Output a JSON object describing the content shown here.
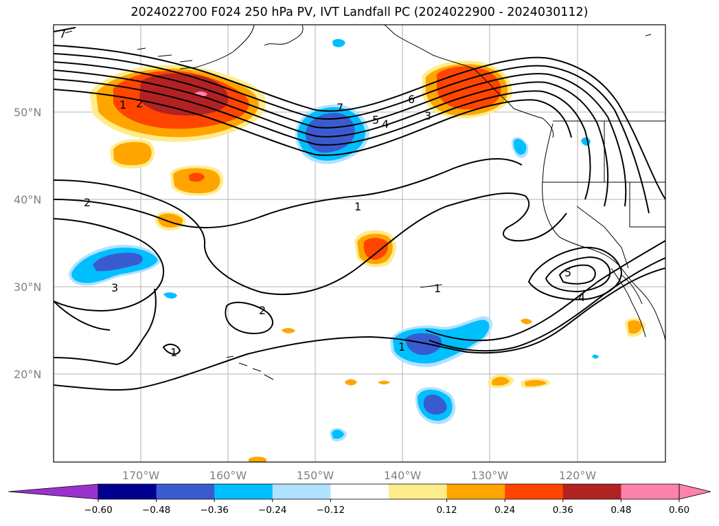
{
  "title": "2024022700 F024 250 hPa PV, IVT Landfall PC (2024022900 - 2024030112)",
  "colorbar": {
    "under_color": "#9932CC",
    "over_color": "#FF82AB",
    "bins": [
      {
        "color": "#000090"
      },
      {
        "color": "#3A5BD0"
      },
      {
        "color": "#00BFFF"
      },
      {
        "color": "#B0E2FF"
      },
      {
        "color": "#FFFFFF"
      },
      {
        "color": "#FFEC8B"
      },
      {
        "color": "#FFA500"
      },
      {
        "color": "#FF4500"
      },
      {
        "color": "#B22222"
      },
      {
        "color": "#FF82AB"
      }
    ],
    "tick_labels": [
      "−0.60",
      "−0.48",
      "−0.36",
      "−0.24",
      "−0.12",
      "0.12",
      "0.24",
      "0.36",
      "0.48",
      "0.60"
    ]
  },
  "axes": {
    "lon_labels": [
      "170°W",
      "160°W",
      "150°W",
      "140°W",
      "130°W",
      "120°W"
    ],
    "lat_labels": [
      "50°N",
      "40°N",
      "30°N",
      "20°N"
    ]
  },
  "contour_labels": [
    {
      "text": "7"
    },
    {
      "text": "1"
    },
    {
      "text": "2"
    },
    {
      "text": "7"
    },
    {
      "text": "5"
    },
    {
      "text": "4"
    },
    {
      "text": "6"
    },
    {
      "text": "3"
    },
    {
      "text": "2"
    },
    {
      "text": "1"
    },
    {
      "text": "3"
    },
    {
      "text": "2"
    },
    {
      "text": "1"
    },
    {
      "text": "1"
    },
    {
      "text": "1"
    },
    {
      "text": "5"
    },
    {
      "text": "4"
    }
  ]
}
